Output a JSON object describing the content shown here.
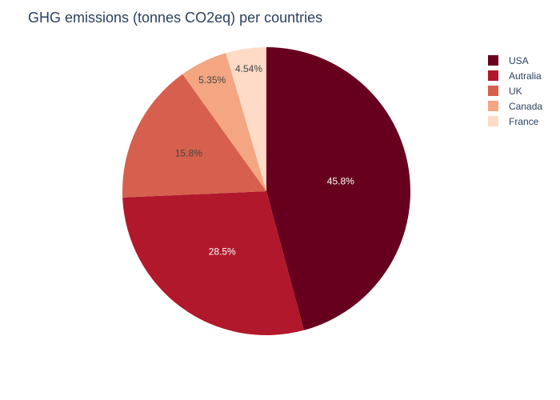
{
  "chart_data": {
    "type": "pie",
    "title": "GHG emissions (tonnes CO2eq) per countries",
    "categories": [
      "USA",
      "Autralia",
      "UK",
      "Canada",
      "France"
    ],
    "values": [
      45.8,
      28.5,
      15.8,
      5.35,
      4.54
    ],
    "labels": [
      "45.8%",
      "28.5%",
      "15.8%",
      "5.35%",
      "4.54%"
    ],
    "colors": [
      "#67001f",
      "#b2182b",
      "#d6604d",
      "#f4a582",
      "#fddbc7"
    ],
    "label_colors": [
      "#ffffff",
      "#ffffff",
      "#444444",
      "#444444",
      "#444444"
    ],
    "legend": {
      "position": "top-right",
      "items": [
        "USA",
        "Autralia",
        "UK",
        "Canada",
        "France"
      ]
    },
    "start_angle": "top",
    "direction": "clockwise"
  }
}
